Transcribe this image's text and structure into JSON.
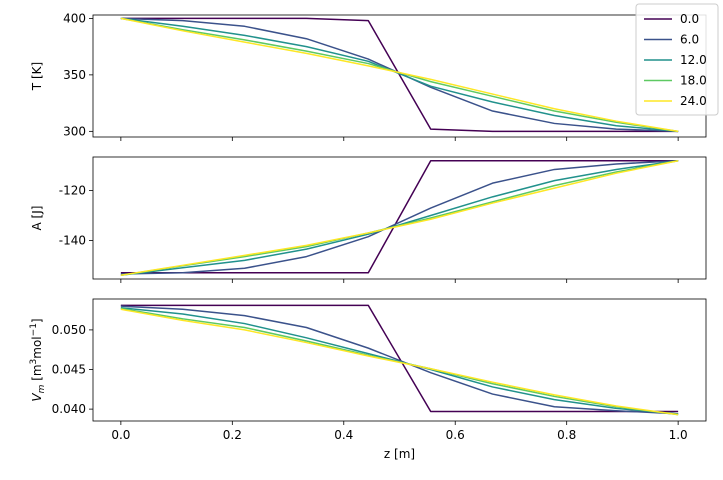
{
  "chart_data": [
    {
      "type": "line",
      "ylabel": "T [K]",
      "xlabel": "",
      "xlim": [
        -0.05,
        1.05
      ],
      "ylim": [
        295,
        403
      ],
      "yticks": [
        300,
        350,
        400
      ],
      "xticks": [
        0.0,
        0.2,
        0.4,
        0.6,
        0.8,
        1.0
      ],
      "show_xtick_labels": false,
      "x": [
        0.0,
        0.111,
        0.222,
        0.333,
        0.444,
        0.556,
        0.667,
        0.778,
        0.889,
        1.0
      ],
      "series": [
        {
          "name": "0.0",
          "color": "#440154",
          "values": [
            400,
            400,
            400,
            400,
            398,
            302,
            300,
            300,
            300,
            300
          ]
        },
        {
          "name": "6.0",
          "color": "#3b528b",
          "values": [
            400,
            398,
            393,
            382,
            364,
            339,
            318,
            307,
            302,
            300
          ]
        },
        {
          "name": "12.0",
          "color": "#21918c",
          "values": [
            400,
            393,
            385,
            375,
            362,
            340,
            326,
            314,
            305,
            300
          ]
        },
        {
          "name": "18.0",
          "color": "#5ec962",
          "values": [
            400,
            390,
            381,
            371,
            360,
            344,
            331,
            318,
            308,
            300
          ]
        },
        {
          "name": "24.0",
          "color": "#fde725",
          "values": [
            400,
            389,
            379,
            369,
            358,
            346,
            333,
            320,
            309,
            300
          ]
        }
      ]
    },
    {
      "type": "line",
      "ylabel": "A [J]",
      "xlabel": "",
      "xlim": [
        -0.05,
        1.05
      ],
      "ylim": [
        -155.5,
        -106.5
      ],
      "yticks": [
        -140,
        -120
      ],
      "xticks": [
        0.0,
        0.2,
        0.4,
        0.6,
        0.8,
        1.0
      ],
      "show_xtick_labels": false,
      "x": [
        0.0,
        0.111,
        0.222,
        0.333,
        0.444,
        0.556,
        0.667,
        0.778,
        0.889,
        1.0
      ],
      "series": [
        {
          "name": "0.0",
          "color": "#440154",
          "values": [
            -153,
            -153,
            -153,
            -153,
            -153,
            -108,
            -108,
            -108,
            -108,
            -108
          ]
        },
        {
          "name": "6.0",
          "color": "#3b528b",
          "values": [
            -153.5,
            -153,
            -151.2,
            -146.5,
            -138.5,
            -127,
            -117,
            -111.5,
            -109.3,
            -108
          ]
        },
        {
          "name": "12.0",
          "color": "#21918c",
          "values": [
            -154,
            -151,
            -148,
            -143.5,
            -137.5,
            -130,
            -122.5,
            -116,
            -111.5,
            -108
          ]
        },
        {
          "name": "18.0",
          "color": "#5ec962",
          "values": [
            -154,
            -150.2,
            -146.5,
            -142.5,
            -137,
            -131,
            -124.5,
            -118,
            -112.5,
            -108
          ]
        },
        {
          "name": "24.0",
          "color": "#fde725",
          "values": [
            -154,
            -150,
            -146,
            -142,
            -137,
            -131.5,
            -125,
            -119,
            -113,
            -108
          ]
        }
      ]
    },
    {
      "type": "line",
      "ylabel": "V_m [m^3 mol^-1]",
      "xlabel": "z [m]",
      "xlim": [
        -0.05,
        1.05
      ],
      "ylim": [
        0.0385,
        0.0539
      ],
      "yticks": [
        0.04,
        0.045,
        0.05
      ],
      "ytick_labels": [
        "0.040",
        "0.045",
        "0.050"
      ],
      "xticks": [
        0.0,
        0.2,
        0.4,
        0.6,
        0.8,
        1.0
      ],
      "xtick_labels": [
        "0.0",
        "0.2",
        "0.4",
        "0.6",
        "0.8",
        "1.0"
      ],
      "show_xtick_labels": true,
      "x": [
        0.0,
        0.111,
        0.222,
        0.333,
        0.444,
        0.556,
        0.667,
        0.778,
        0.889,
        1.0
      ],
      "series": [
        {
          "name": "0.0",
          "color": "#440154",
          "values": [
            0.0531,
            0.0531,
            0.0531,
            0.0531,
            0.0531,
            0.0397,
            0.0397,
            0.0397,
            0.0397,
            0.0397
          ]
        },
        {
          "name": "6.0",
          "color": "#3b528b",
          "values": [
            0.053,
            0.0526,
            0.0518,
            0.0503,
            0.0477,
            0.0446,
            0.0419,
            0.0403,
            0.0398,
            0.0394
          ]
        },
        {
          "name": "12.0",
          "color": "#21918c",
          "values": [
            0.0528,
            0.052,
            0.0508,
            0.049,
            0.047,
            0.045,
            0.0428,
            0.0412,
            0.0401,
            0.0394
          ]
        },
        {
          "name": "18.0",
          "color": "#5ec962",
          "values": [
            0.0527,
            0.0514,
            0.0503,
            0.0486,
            0.0468,
            0.0451,
            0.0432,
            0.0416,
            0.0403,
            0.0393
          ]
        },
        {
          "name": "24.0",
          "color": "#fde725",
          "values": [
            0.0526,
            0.0512,
            0.05,
            0.0484,
            0.0467,
            0.0451,
            0.0434,
            0.0418,
            0.0404,
            0.0393
          ]
        }
      ]
    }
  ],
  "legend": {
    "placement": "top-right",
    "entries": [
      {
        "label": "0.0",
        "color": "#440154"
      },
      {
        "label": "6.0",
        "color": "#3b528b"
      },
      {
        "label": "12.0",
        "color": "#21918c"
      },
      {
        "label": "18.0",
        "color": "#5ec962"
      },
      {
        "label": "24.0",
        "color": "#fde725"
      }
    ]
  }
}
